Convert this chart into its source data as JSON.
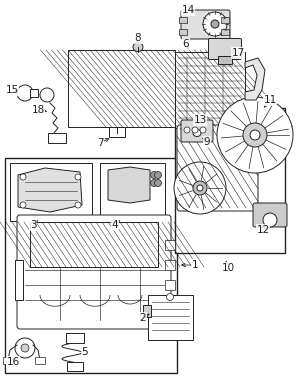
{
  "bg_color": "#ffffff",
  "line_color": "#222222",
  "fig_width": 3.04,
  "fig_height": 3.85,
  "dpi": 100,
  "lw": 0.7,
  "label_fs": 7.5
}
